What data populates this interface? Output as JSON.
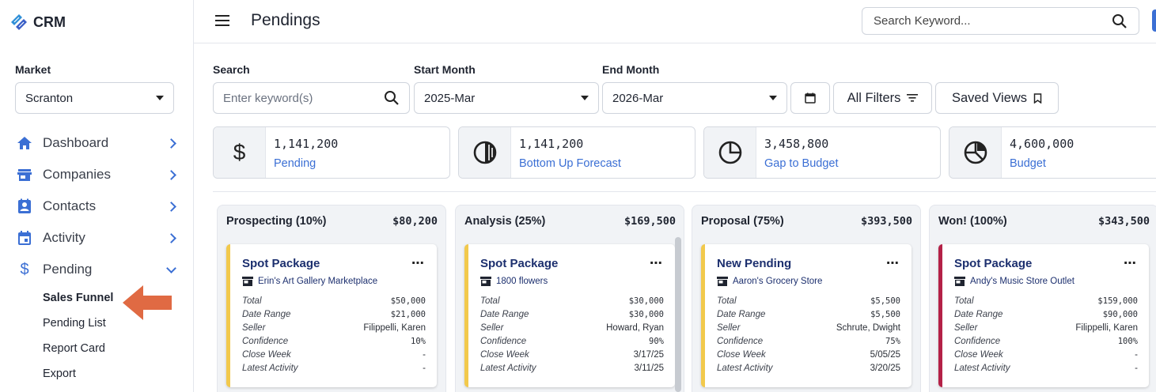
{
  "app": {
    "logo_text": "CRM"
  },
  "header": {
    "title": "Pendings",
    "search_placeholder": "Search Keyword..."
  },
  "sidebar": {
    "market_label": "Market",
    "market_value": "Scranton",
    "nav": [
      {
        "label": "Dashboard",
        "icon": "home-icon"
      },
      {
        "label": "Companies",
        "icon": "store-icon"
      },
      {
        "label": "Contacts",
        "icon": "contact-card-icon"
      },
      {
        "label": "Activity",
        "icon": "calendar-icon"
      },
      {
        "label": "Pending",
        "icon": "dollar-icon"
      }
    ],
    "sub_items": [
      "Sales Funnel",
      "Pending List",
      "Report Card",
      "Export"
    ],
    "active_sub": "Sales Funnel"
  },
  "filters": {
    "search_label": "Search",
    "search_placeholder": "Enter keyword(s)",
    "start_label": "Start Month",
    "start_value": "2025-Mar",
    "end_label": "End Month",
    "end_value": "2026-Mar",
    "all_filters": "All Filters",
    "saved_views": "Saved Views"
  },
  "kpis": [
    {
      "value": "1,141,200",
      "label": "Pending",
      "icon": "dollar-icon"
    },
    {
      "value": "1,141,200",
      "label": "Bottom Up Forecast",
      "icon": "half-circle-icon"
    },
    {
      "value": "3,458,800",
      "label": "Gap to Budget",
      "icon": "quarter-circle-icon"
    },
    {
      "value": "4,600,000",
      "label": "Budget",
      "icon": "pie-chart-icon"
    }
  ],
  "columns": [
    {
      "title": "Prospecting (10%)",
      "total": "$80,200",
      "card": {
        "title": "Spot Package",
        "company": "Erin's Art Gallery Marketplace",
        "accent": "#f2c94c",
        "total": "$50,000",
        "date_range": "$21,000",
        "seller": "Filippelli, Karen",
        "confidence": "10%",
        "close_week": "-",
        "latest_activity": "-"
      }
    },
    {
      "title": "Analysis (25%)",
      "total": "$169,500",
      "card": {
        "title": "Spot Package",
        "company": "1800 flowers",
        "accent": "#f2c94c",
        "total": "$30,000",
        "date_range": "$30,000",
        "seller": "Howard, Ryan",
        "confidence": "90%",
        "close_week": "3/17/25",
        "latest_activity": "3/11/25"
      }
    },
    {
      "title": "Proposal (75%)",
      "total": "$393,500",
      "card": {
        "title": "New Pending",
        "company": "Aaron's Grocery Store",
        "accent": "#f2c94c",
        "total": "$5,500",
        "date_range": "$5,500",
        "seller": "Schrute, Dwight",
        "confidence": "75%",
        "close_week": "5/05/25",
        "latest_activity": "3/20/25"
      }
    },
    {
      "title": "Won! (100%)",
      "total": "$343,500",
      "card": {
        "title": "Spot Package",
        "company": "Andy's Music Store Outlet",
        "accent": "#b42147",
        "total": "$159,000",
        "date_range": "$90,000",
        "seller": "Filippelli, Karen",
        "confidence": "100%",
        "close_week": "-",
        "latest_activity": "-"
      }
    }
  ],
  "row_labels": {
    "total": "Total",
    "date_range": "Date Range",
    "seller": "Seller",
    "confidence": "Confidence",
    "close_week": "Close Week",
    "latest_activity": "Latest Activity"
  },
  "colors": {
    "accent_blue": "#3b6fd4",
    "arrow": "#e06a43",
    "card_title": "#1c2f6e"
  }
}
